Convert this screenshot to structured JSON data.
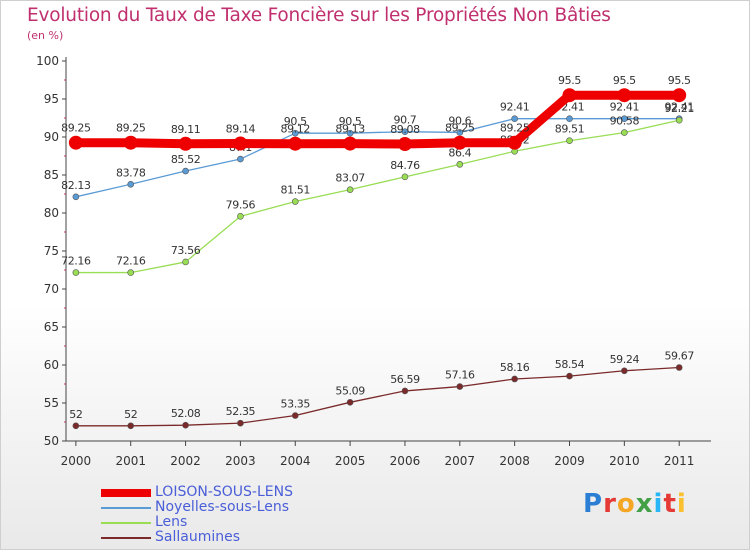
{
  "chart_data": {
    "type": "line",
    "title": "Evolution du Taux de Taxe Foncière sur les Propriétés Non Bâties",
    "ylabel": "(en %)",
    "ylim": [
      50,
      100
    ],
    "yticks": [
      50,
      55,
      60,
      65,
      70,
      75,
      80,
      85,
      90,
      95,
      100
    ],
    "grid": false,
    "legend_position": "bottom-left",
    "x": [
      "2000",
      "2001",
      "2002",
      "2003",
      "2004",
      "2005",
      "2006",
      "2007",
      "2008",
      "2009",
      "2010",
      "2011"
    ],
    "series": [
      {
        "name": "LOISON-SOUS-LENS",
        "color": "#ee0000",
        "values": [
          89.25,
          89.25,
          89.11,
          89.14,
          89.12,
          89.13,
          89.08,
          89.25,
          89.25,
          95.5,
          95.5,
          95.5
        ],
        "labels": [
          "89.25",
          "89.25",
          "89.11",
          "89.14",
          "89.12",
          "89.13",
          "89.08",
          "89.25",
          "89.25",
          "95.5",
          "95.5",
          "95.5"
        ]
      },
      {
        "name": "Noyelles-sous-Lens",
        "color": "#5b9bd5",
        "values": [
          82.13,
          83.78,
          85.52,
          87.1,
          90.5,
          90.5,
          90.7,
          90.6,
          92.41,
          92.41,
          92.41,
          92.41
        ],
        "labels": [
          "82.13",
          "83.78",
          "85.52",
          "87.1",
          "90.5",
          "90.5",
          "90.7",
          "90.6",
          "92.41",
          "92.41",
          "92.41",
          "92.41"
        ]
      },
      {
        "name": "Lens",
        "color": "#99dd55",
        "values": [
          72.16,
          72.16,
          73.56,
          79.56,
          81.51,
          83.07,
          84.76,
          86.4,
          88.12,
          89.51,
          90.58,
          92.21
        ],
        "labels": [
          "72.16",
          "72.16",
          "73.56",
          "79.56",
          "81.51",
          "83.07",
          "84.76",
          "86.4",
          "88.12",
          "89.51",
          "90.58",
          "92.21"
        ]
      },
      {
        "name": "Sallaumines",
        "color": "#7a2a2a",
        "values": [
          52,
          52,
          52.08,
          52.35,
          53.35,
          55.09,
          56.59,
          57.16,
          58.16,
          58.54,
          59.24,
          59.67
        ],
        "labels": [
          "52",
          "52",
          "52.08",
          "52.35",
          "53.35",
          "55.09",
          "56.59",
          "57.16",
          "58.16",
          "58.54",
          "59.24",
          "59.67"
        ]
      }
    ]
  },
  "logo": {
    "text": "Proxiti",
    "letter_colors": [
      "#2a7fd4",
      "#e53935",
      "#f5a623",
      "#43a047",
      "#29b6f6",
      "#e53935",
      "#fbc02d"
    ]
  }
}
